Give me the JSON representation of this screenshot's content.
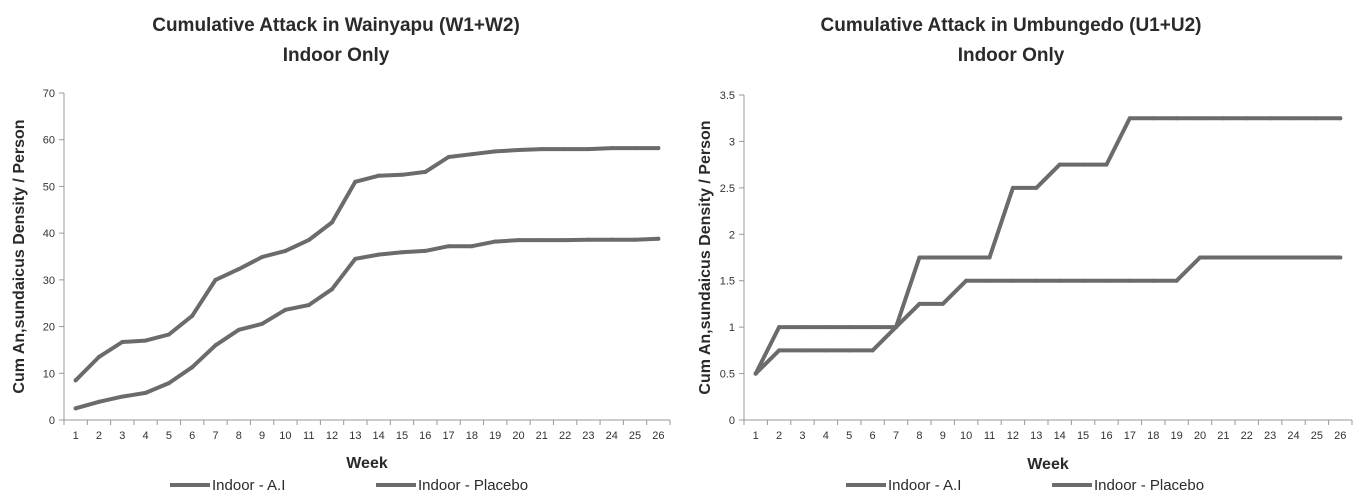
{
  "chart_data": [
    {
      "type": "line",
      "title": "Cumulative Attack in Wainyapu (W1+W2)",
      "subtitle": "Indoor Only",
      "xlabel": "Week",
      "ylabel": "Cum  An,sundaicus  Density / Person",
      "x": [
        1,
        2,
        3,
        4,
        5,
        6,
        7,
        8,
        9,
        10,
        11,
        12,
        13,
        14,
        15,
        16,
        17,
        18,
        19,
        20,
        21,
        22,
        23,
        24,
        25,
        26
      ],
      "ylim": [
        0,
        70
      ],
      "yticks": [
        0,
        10,
        20,
        30,
        40,
        50,
        60,
        70
      ],
      "ytick_labels": [
        "0",
        "10",
        "20",
        "30",
        "40",
        "50",
        "60",
        "70"
      ],
      "grid": false,
      "legend_position": "bottom",
      "series": [
        {
          "name": "Indoor - A.I",
          "values": [
            8.5,
            13.5,
            16.7,
            17.0,
            18.3,
            22.3,
            30.0,
            32.3,
            34.9,
            36.2,
            38.5,
            42.3,
            51.0,
            52.3,
            52.5,
            53.1,
            56.3,
            56.9,
            57.5,
            57.8,
            58.0,
            58.0,
            58.0,
            58.2,
            58.2,
            58.2
          ]
        },
        {
          "name": "Indoor - Placebo",
          "values": [
            2.5,
            3.9,
            5.0,
            5.8,
            7.9,
            11.3,
            16.0,
            19.3,
            20.6,
            23.6,
            24.6,
            28.0,
            34.5,
            35.4,
            35.9,
            36.2,
            37.2,
            37.2,
            38.2,
            38.5,
            38.5,
            38.5,
            38.6,
            38.6,
            38.6,
            38.8
          ]
        }
      ]
    },
    {
      "type": "line",
      "title": "Cumulative Attack in Umbungedo (U1+U2)",
      "subtitle": "Indoor Only",
      "xlabel": "Week",
      "ylabel": "Cum  An,sundaicus  Density / Person",
      "x": [
        1,
        2,
        3,
        4,
        5,
        6,
        7,
        8,
        9,
        10,
        11,
        12,
        13,
        14,
        15,
        16,
        17,
        18,
        19,
        20,
        21,
        22,
        23,
        24,
        25,
        26
      ],
      "ylim": [
        0,
        3.5
      ],
      "yticks": [
        0,
        0.5,
        1,
        1.5,
        2,
        2.5,
        3,
        3.5
      ],
      "ytick_labels": [
        "0",
        "0.5",
        "1",
        "1.5",
        "2",
        "2.5",
        "3",
        "3.5"
      ],
      "grid": false,
      "legend_position": "bottom",
      "series": [
        {
          "name": "Indoor - A.I",
          "values": [
            0.5,
            1.0,
            1.0,
            1.0,
            1.0,
            1.0,
            1.0,
            1.75,
            1.75,
            1.75,
            1.75,
            2.5,
            2.5,
            2.75,
            2.75,
            2.75,
            3.25,
            3.25,
            3.25,
            3.25,
            3.25,
            3.25,
            3.25,
            3.25,
            3.25,
            3.25
          ]
        },
        {
          "name": "Indoor - Placebo",
          "values": [
            0.5,
            0.75,
            0.75,
            0.75,
            0.75,
            0.75,
            1.0,
            1.25,
            1.25,
            1.5,
            1.5,
            1.5,
            1.5,
            1.5,
            1.5,
            1.5,
            1.5,
            1.5,
            1.5,
            1.75,
            1.75,
            1.75,
            1.75,
            1.75,
            1.75,
            1.75
          ]
        }
      ]
    }
  ],
  "colors": {
    "series_line": "#6b6b6b",
    "axis": "#999999",
    "text": "#2a2a2a"
  }
}
